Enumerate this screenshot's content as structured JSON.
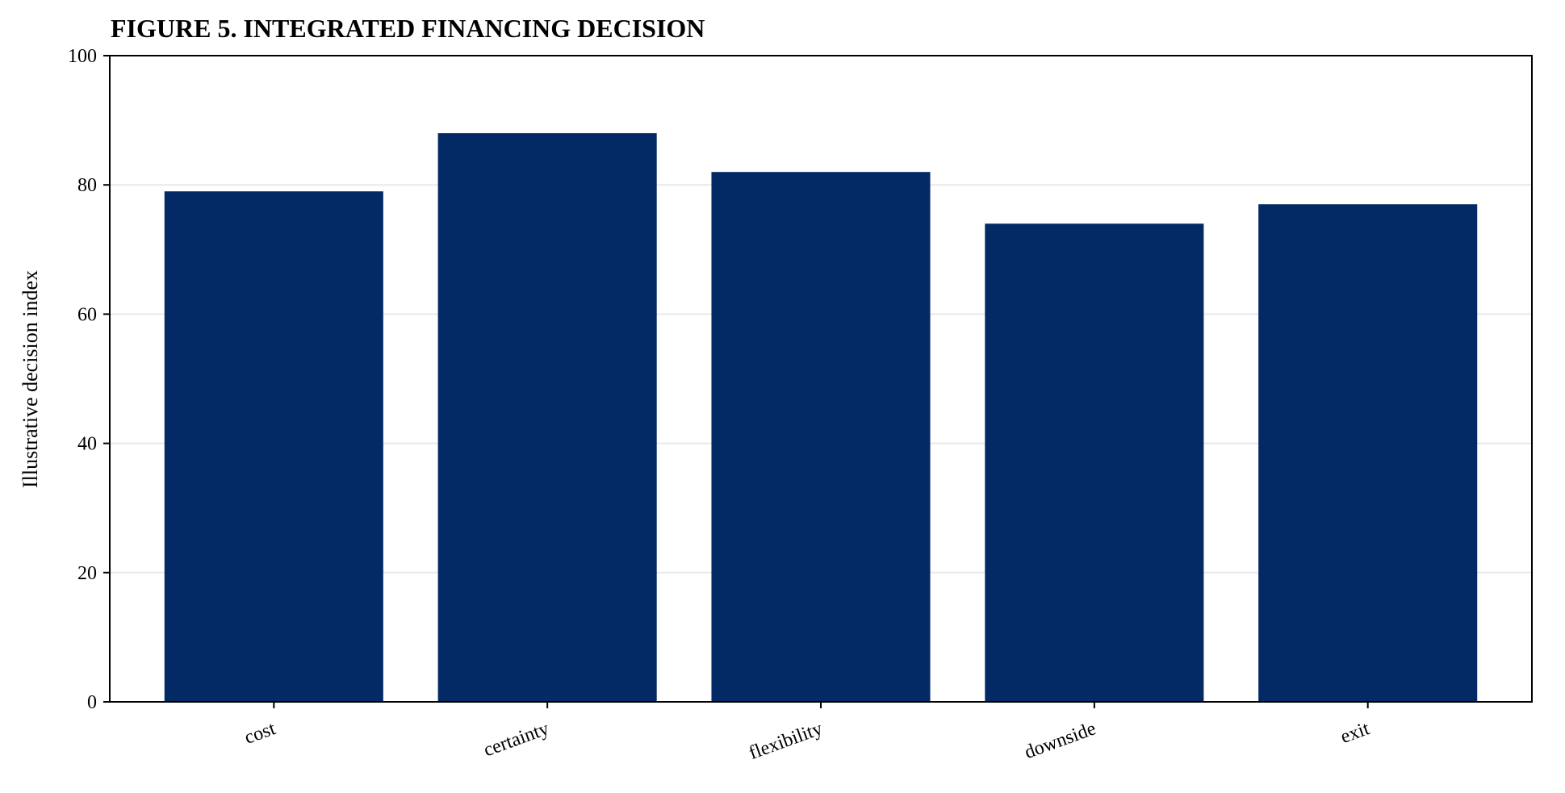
{
  "chart_data": {
    "type": "bar",
    "title": "FIGURE 5. INTEGRATED FINANCING DECISION",
    "xlabel": "",
    "ylabel": "Illustrative decision index",
    "categories": [
      "cost",
      "certainty",
      "flexibility",
      "downside",
      "exit"
    ],
    "values": [
      79,
      88,
      82,
      74,
      77
    ],
    "ylim": [
      0,
      100
    ],
    "yticks": [
      0,
      20,
      40,
      60,
      80,
      100
    ],
    "grid": "horizontal",
    "legend": "none",
    "colors": {
      "bar": "#032a64",
      "grid": "#e9e9e9",
      "axis": "#000000"
    }
  }
}
